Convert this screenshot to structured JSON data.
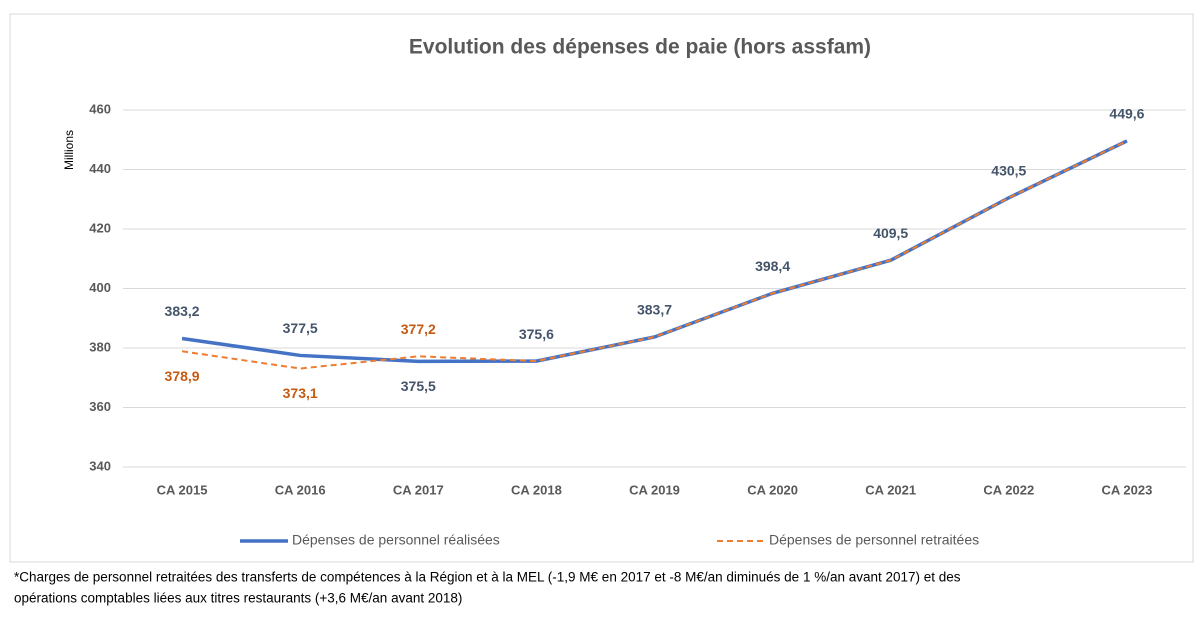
{
  "chart_data": {
    "type": "line",
    "title": "Evolution des dépenses de paie (hors assfam)",
    "y_label": "Millions",
    "categories": [
      "CA 2015",
      "CA 2016",
      "CA 2017",
      "CA 2018",
      "CA 2019",
      "CA 2020",
      "CA 2021",
      "CA 2022",
      "CA 2023"
    ],
    "series": [
      {
        "name": "Dépenses de personnel réalisées",
        "color": "#4472c4",
        "dash": false,
        "values": [
          383.2,
          377.5,
          375.5,
          375.6,
          383.7,
          398.4,
          409.5,
          430.5,
          449.6
        ],
        "value_labels": [
          "383,2",
          "377,5",
          "375,5",
          "375,6",
          "383,7",
          "398,4",
          "409,5",
          "430,5",
          "449,6"
        ]
      },
      {
        "name": "Dépenses de personnel retraitées",
        "color": "#ed7d31",
        "dash": true,
        "values": [
          378.9,
          373.1,
          377.2,
          375.6,
          383.7,
          398.4,
          409.5,
          430.5,
          449.6
        ],
        "value_labels": [
          "378,9",
          "373,1",
          "377,2",
          null,
          null,
          null,
          null,
          null,
          null
        ]
      }
    ],
    "ylim": [
      340,
      460
    ],
    "yticks": [
      340,
      360,
      380,
      400,
      420,
      440,
      460
    ],
    "grid": true,
    "legend": "bottom",
    "footnote": [
      "*Charges de personnel retraitées des transferts de compétences à la Région et à la MEL (-1,9 M€ en 2017 et -8 M€/an diminués de 1 %/an avant 2017) et des",
      "opérations comptables liées aux titres restaurants (+3,6 M€/an avant 2018)"
    ]
  }
}
